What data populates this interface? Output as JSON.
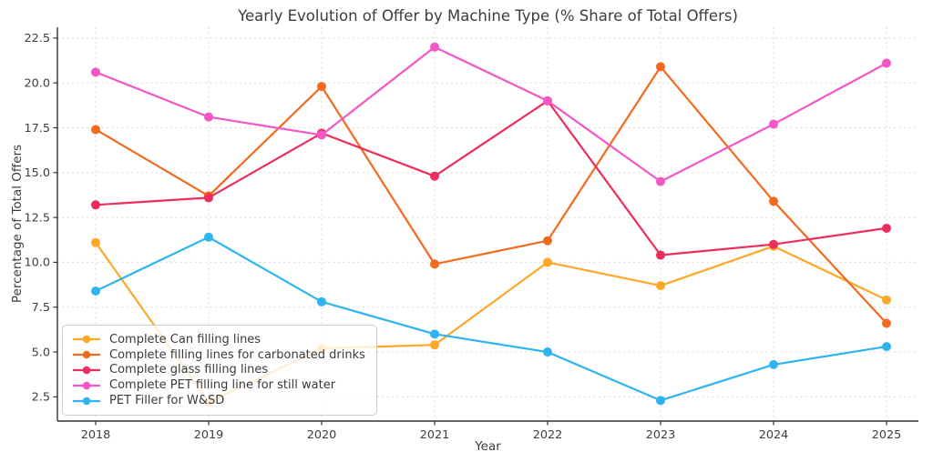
{
  "chart_data": {
    "type": "line",
    "title": "Yearly Evolution of Offer by Machine Type (% Share of Total Offers)",
    "xlabel": "Year",
    "ylabel": "Percentage of Total Offers",
    "categories": [
      "2018",
      "2019",
      "2020",
      "2021",
      "2022",
      "2023",
      "2024",
      "2025"
    ],
    "yticks": [
      2.5,
      5.0,
      7.5,
      10.0,
      12.5,
      15.0,
      17.5,
      20.0,
      22.5
    ],
    "ylim": [
      1.15,
      23.1
    ],
    "grid": true,
    "legend_position": "lower-left",
    "background_color": "#ffffff",
    "gridline_color": "#d9d9d9",
    "series": [
      {
        "name": "Complete Can filling lines",
        "color": "#FFA726",
        "values": [
          11.1,
          2.2,
          5.2,
          5.4,
          10.0,
          8.7,
          10.9,
          7.9
        ]
      },
      {
        "name": "Complete filling lines for carbonated drinks",
        "color": "#F3691E",
        "values": [
          17.4,
          13.7,
          19.8,
          9.9,
          11.2,
          20.9,
          13.4,
          6.6
        ]
      },
      {
        "name": "Complete glass filling lines",
        "color": "#ED2D5C",
        "values": [
          13.2,
          13.6,
          17.2,
          14.8,
          19.0,
          10.4,
          11.0,
          11.9
        ]
      },
      {
        "name": "Complete PET filling line for still water",
        "color": "#F356C6",
        "values": [
          20.6,
          18.1,
          17.1,
          22.0,
          19.0,
          14.5,
          17.7,
          21.1
        ]
      },
      {
        "name": "PET Filler for W&SD",
        "color": "#2FB4F0",
        "values": [
          8.4,
          11.4,
          7.8,
          6.0,
          5.0,
          2.3,
          4.3,
          5.3
        ]
      }
    ]
  }
}
